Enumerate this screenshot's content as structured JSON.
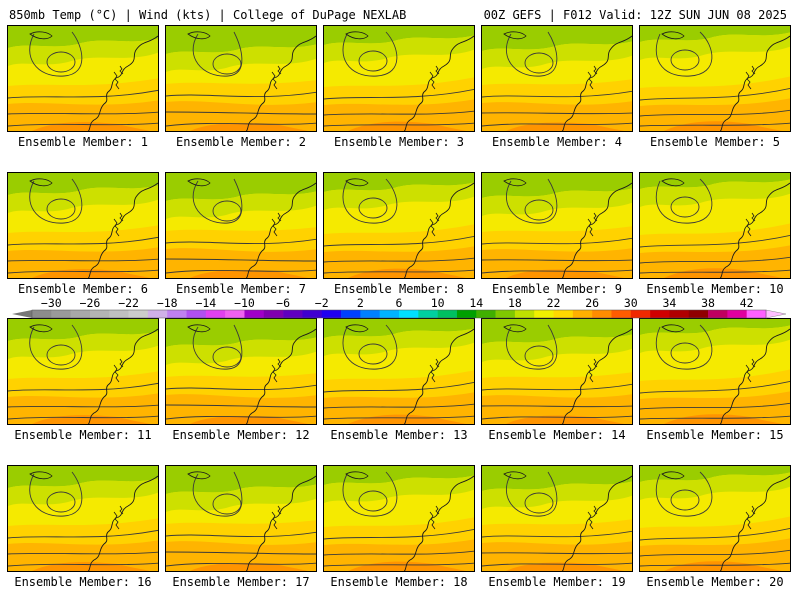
{
  "header": {
    "left_title": "850mb Temp (°C) | Wind (kts) | College of DuPage NEXLAB",
    "right_title": "00Z GEFS | F012 Valid: 12Z SUN JUN 08 2025"
  },
  "member_label_prefix": "Ensemble Member: ",
  "members": [
    1,
    2,
    3,
    4,
    5,
    6,
    7,
    8,
    9,
    10,
    11,
    12,
    13,
    14,
    15,
    16,
    17,
    18,
    19,
    20
  ],
  "colorbar": {
    "tick_labels": [
      "−30",
      "−26",
      "−22",
      "−18",
      "−14",
      "−10",
      "−6",
      "−2",
      "2",
      "6",
      "10",
      "14",
      "18",
      "22",
      "26",
      "30",
      "34",
      "38",
      "42"
    ],
    "tick_values": [
      -30,
      -26,
      -22,
      -18,
      -14,
      -10,
      -6,
      -2,
      2,
      6,
      10,
      14,
      18,
      22,
      26,
      30,
      34,
      38,
      42
    ],
    "min": -32,
    "max": 44,
    "step": 2,
    "colors": [
      "#8c8c8c",
      "#9a9a9a",
      "#a8a8a8",
      "#b4b4b4",
      "#c0c0c0",
      "#cccccc",
      "#d0b0e8",
      "#c080f0",
      "#b050f0",
      "#e040f0",
      "#f060f0",
      "#a000c8",
      "#8000b0",
      "#6000c0",
      "#4000d0",
      "#2000f0",
      "#0040ff",
      "#0080ff",
      "#00b4ff",
      "#00e0ff",
      "#00d0a0",
      "#00c060",
      "#00a000",
      "#40b000",
      "#80c800",
      "#c0e000",
      "#f0f000",
      "#ffd800",
      "#ffb000",
      "#ff8c00",
      "#ff5c00",
      "#f02800",
      "#d00000",
      "#b00000",
      "#900000",
      "#c00060",
      "#e000a0",
      "#ff60ff"
    ]
  },
  "map_colors": {
    "green": "#9acd00",
    "yellowgreen": "#cde000",
    "yellow": "#f5ea00",
    "gold": "#ffd200",
    "orange": "#ffb400",
    "deep_orange": "#ff9400"
  }
}
